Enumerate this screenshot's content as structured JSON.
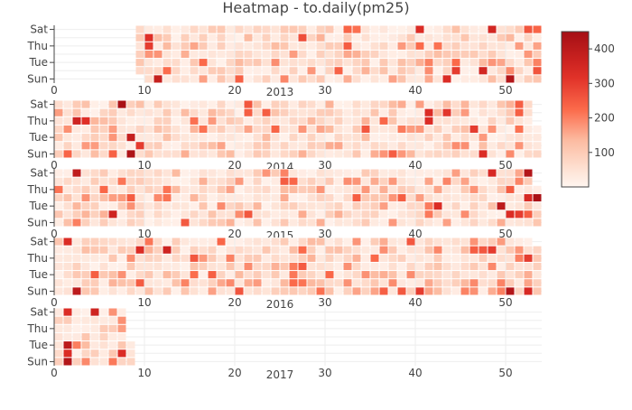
{
  "chart_data": {
    "type": "heatmap",
    "title": "Heatmap - to.daily(pm25)",
    "weekday_ticks": [
      "Sun",
      "Tue",
      "Thu",
      "Sat"
    ],
    "week_ticks": [
      0,
      10,
      20,
      30,
      40,
      50
    ],
    "xlim": [
      0,
      54
    ],
    "colorscale": {
      "low": "#fff5f0",
      "mid": "#fb6a4a",
      "high": "#a50f15"
    },
    "colorbar": {
      "range": [
        0,
        450
      ],
      "ticks": [
        100,
        200,
        300,
        400
      ]
    },
    "grid": true,
    "legend": "colorbar at right",
    "panels": [
      {
        "year": "2013",
        "hot": [
          {
            "week": 11,
            "day": 0,
            "value": 380
          },
          {
            "week": 10,
            "day": 4,
            "value": 300
          },
          {
            "week": 10,
            "day": 5,
            "value": 320
          },
          {
            "week": 27,
            "day": 5,
            "value": 270
          },
          {
            "week": 40,
            "day": 6,
            "value": 330
          },
          {
            "week": 43,
            "day": 0,
            "value": 330
          },
          {
            "week": 44,
            "day": 1,
            "value": 300
          },
          {
            "week": 47,
            "day": 1,
            "value": 350
          },
          {
            "week": 48,
            "day": 6,
            "value": 350
          },
          {
            "week": 50,
            "day": 0,
            "value": 420
          },
          {
            "week": 53,
            "day": 1,
            "value": 260
          }
        ]
      },
      {
        "year": "2014",
        "hot": [
          {
            "week": 7,
            "day": 6,
            "value": 440
          },
          {
            "week": 8,
            "day": 0,
            "value": 430
          },
          {
            "week": 8,
            "day": 2,
            "value": 380
          },
          {
            "week": 2,
            "day": 4,
            "value": 360
          },
          {
            "week": 3,
            "day": 4,
            "value": 320
          },
          {
            "week": 9,
            "day": 1,
            "value": 300
          },
          {
            "week": 41,
            "day": 4,
            "value": 330
          },
          {
            "week": 41,
            "day": 5,
            "value": 330
          },
          {
            "week": 43,
            "day": 5,
            "value": 310
          },
          {
            "week": 46,
            "day": 3,
            "value": 300
          },
          {
            "week": 47,
            "day": 0,
            "value": 330
          }
        ]
      },
      {
        "year": "2015",
        "hot": [
          {
            "week": 2,
            "day": 6,
            "value": 390
          },
          {
            "week": 6,
            "day": 1,
            "value": 360
          },
          {
            "week": 42,
            "day": 2,
            "value": 330
          },
          {
            "week": 48,
            "day": 6,
            "value": 340
          },
          {
            "week": 49,
            "day": 2,
            "value": 400
          },
          {
            "week": 50,
            "day": 1,
            "value": 330
          },
          {
            "week": 51,
            "day": 1,
            "value": 300
          },
          {
            "week": 52,
            "day": 6,
            "value": 420
          },
          {
            "week": 53,
            "day": 3,
            "value": 440
          },
          {
            "week": 52,
            "day": 3,
            "value": 340
          }
        ]
      },
      {
        "year": "2016",
        "hot": [
          {
            "week": 2,
            "day": 0,
            "value": 400
          },
          {
            "week": 1,
            "day": 6,
            "value": 330
          },
          {
            "week": 9,
            "day": 5,
            "value": 330
          },
          {
            "week": 12,
            "day": 5,
            "value": 360
          },
          {
            "week": 40,
            "day": 0,
            "value": 300
          },
          {
            "week": 48,
            "day": 5,
            "value": 300
          },
          {
            "week": 50,
            "day": 0,
            "value": 420
          },
          {
            "week": 52,
            "day": 0,
            "value": 340
          },
          {
            "week": 52,
            "day": 4,
            "value": 300
          },
          {
            "week": 53,
            "day": 6,
            "value": 330
          }
        ]
      },
      {
        "year": "2017",
        "hot": [
          {
            "week": 1,
            "day": 0,
            "value": 420
          },
          {
            "week": 1,
            "day": 2,
            "value": 400
          },
          {
            "week": 1,
            "day": 1,
            "value": 330
          },
          {
            "week": 1,
            "day": 6,
            "value": 330
          },
          {
            "week": 4,
            "day": 6,
            "value": 360
          },
          {
            "week": 7,
            "day": 1,
            "value": 330
          }
        ]
      }
    ]
  }
}
